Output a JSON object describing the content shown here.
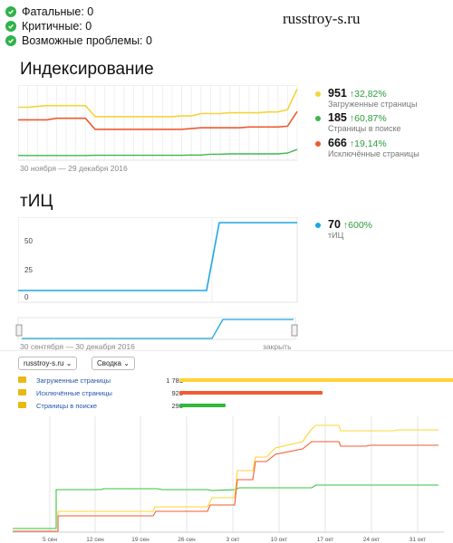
{
  "status": [
    {
      "label": "Фатальные: 0"
    },
    {
      "label": "Критичные: 0"
    },
    {
      "label": "Возможные проблемы: 0"
    }
  ],
  "site_title": "russtroy-s.ru",
  "indexing": {
    "title": "Индексирование",
    "date_range": "30 ноября — 29 декабря 2016",
    "legend": [
      {
        "value": "951",
        "delta": "↑32,82%",
        "label": "Загруженные страницы",
        "color": "#f5d33a"
      },
      {
        "value": "185",
        "delta": "↑60,87%",
        "label": "Страницы в поиске",
        "color": "#3cb94a"
      },
      {
        "value": "666",
        "delta": "↑19,14%",
        "label": "Исключённые страницы",
        "color": "#ee5a32"
      }
    ],
    "series": {
      "loaded": [
        720,
        720,
        730,
        740,
        740,
        740,
        740,
        740,
        600,
        600,
        600,
        600,
        600,
        600,
        600,
        600,
        600,
        610,
        610,
        640,
        640,
        640,
        650,
        650,
        650,
        650,
        660,
        660,
        690,
        951
      ],
      "excluded": [
        560,
        560,
        560,
        560,
        580,
        580,
        580,
        580,
        440,
        440,
        440,
        440,
        440,
        440,
        440,
        440,
        440,
        440,
        450,
        460,
        460,
        460,
        460,
        460,
        470,
        470,
        470,
        470,
        480,
        666
      ],
      "search": [
        110,
        110,
        110,
        110,
        110,
        110,
        110,
        110,
        112,
        112,
        112,
        112,
        112,
        112,
        112,
        112,
        112,
        112,
        115,
        115,
        125,
        125,
        130,
        130,
        130,
        130,
        130,
        130,
        140,
        185
      ]
    }
  },
  "tic": {
    "title": "тИЦ",
    "legend": {
      "value": "70",
      "delta": "↑600%",
      "label": "тИЦ",
      "color": "#1ea7e1"
    },
    "y_ticks": [
      "50",
      "25",
      "0"
    ],
    "date_range": "30 сентября — 30 декабря 2016",
    "close_label": "закрыть"
  },
  "bottom": {
    "site_select": "russtroy-s.ru",
    "view_select": "Сводка",
    "rows": [
      {
        "label": "Загруженные страницы",
        "value": "1 781",
        "fraction": 1.0,
        "color": "#fdd532"
      },
      {
        "label": "Исключённые страницы",
        "value": "928",
        "fraction": 0.521,
        "color": "#f35a33"
      },
      {
        "label": "Страницы в поиске",
        "value": "298",
        "fraction": 0.167,
        "color": "#33b83a"
      }
    ],
    "x_labels": [
      "5 сен",
      "12 сен",
      "19 сен",
      "26 сен",
      "3 окт",
      "10 окт",
      "17 окт",
      "24 окт",
      "31 окт"
    ]
  }
}
